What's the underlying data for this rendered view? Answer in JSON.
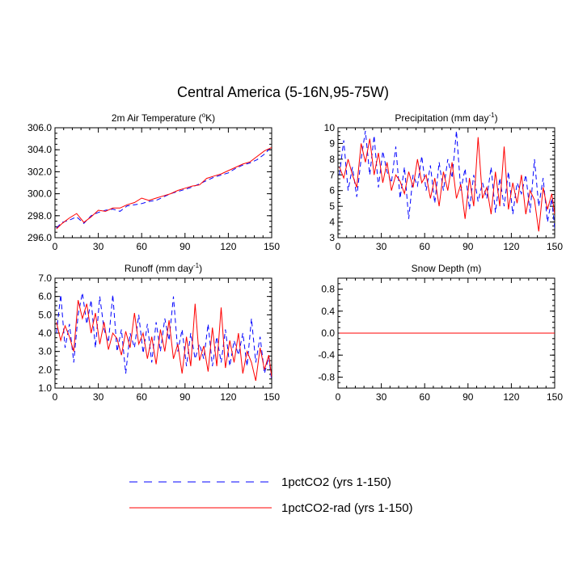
{
  "figure_title": "Central America (5-16N,95-75W)",
  "legend": {
    "placement": "bottom",
    "entries": [
      {
        "label": "1pctCO2 (yrs 1-150)",
        "color": "#0000ff",
        "dash": "dashed"
      },
      {
        "label": "1pctCO2-rad (yrs 1-150)",
        "color": "#ff0000",
        "dash": "solid"
      }
    ]
  },
  "chart_data": [
    {
      "type": "line",
      "title": "2m Air Temperature (°K)",
      "title_parts": {
        "main": "2m Air Temperature (",
        "sup": "o",
        "tail": "K)"
      },
      "xlim": [
        0,
        150
      ],
      "ylim": [
        296.0,
        306.0
      ],
      "xticks": [
        0,
        30,
        60,
        90,
        120,
        150
      ],
      "xtick_labels": [
        "0",
        "30",
        "60",
        "90",
        "120",
        "150"
      ],
      "yticks": [
        296.0,
        298.0,
        300.0,
        302.0,
        304.0,
        306.0
      ],
      "ytick_labels": [
        "296.0",
        "298.0",
        "300.0",
        "302.0",
        "304.0",
        "306.0"
      ],
      "series": [
        {
          "name": "1pctCO2 (yrs 1-150)",
          "color": "#0000ff",
          "dash": "dashed",
          "x": [
            1,
            5,
            10,
            15,
            20,
            25,
            30,
            35,
            40,
            45,
            50,
            55,
            60,
            65,
            70,
            75,
            80,
            85,
            90,
            95,
            100,
            105,
            110,
            115,
            120,
            125,
            130,
            135,
            140,
            145,
            150
          ],
          "y": [
            296.9,
            297.4,
            297.6,
            297.9,
            297.3,
            298.0,
            298.3,
            298.5,
            298.6,
            298.4,
            298.9,
            299.0,
            299.1,
            299.3,
            299.4,
            299.7,
            300.0,
            300.2,
            300.4,
            300.6,
            300.9,
            301.2,
            301.5,
            301.7,
            301.9,
            302.3,
            302.6,
            302.8,
            303.1,
            303.6,
            304.3
          ]
        },
        {
          "name": "1pctCO2-rad (yrs 1-150)",
          "color": "#ff0000",
          "dash": "solid",
          "x": [
            1,
            5,
            10,
            15,
            20,
            25,
            30,
            35,
            40,
            45,
            50,
            55,
            60,
            65,
            70,
            75,
            80,
            85,
            90,
            95,
            100,
            105,
            110,
            115,
            120,
            125,
            130,
            135,
            140,
            145,
            150
          ],
          "y": [
            296.8,
            297.3,
            297.8,
            298.2,
            297.4,
            297.9,
            298.5,
            298.4,
            298.7,
            298.7,
            299.0,
            299.2,
            299.6,
            299.4,
            299.6,
            299.8,
            300.0,
            300.3,
            300.5,
            300.7,
            300.8,
            301.4,
            301.6,
            301.8,
            302.1,
            302.4,
            302.7,
            302.9,
            303.4,
            303.9,
            304.2
          ]
        }
      ]
    },
    {
      "type": "line",
      "title": "Precipitation (mm day-1)",
      "title_parts": {
        "main": "Precipitation (mm day",
        "sup": "-1",
        "tail": ")"
      },
      "xlim": [
        0,
        150
      ],
      "ylim": [
        3,
        10
      ],
      "xticks": [
        0,
        30,
        60,
        90,
        120,
        150
      ],
      "xtick_labels": [
        "0",
        "30",
        "60",
        "90",
        "120",
        "150"
      ],
      "yticks": [
        3,
        4,
        5,
        6,
        7,
        8,
        9,
        10
      ],
      "ytick_labels": [
        "3",
        "4",
        "5",
        "6",
        "7",
        "8",
        "9",
        "10"
      ],
      "series": [
        {
          "name": "1pctCO2 (yrs 1-150)",
          "color": "#0000ff",
          "dash": "dashed",
          "x": [
            1,
            4,
            7,
            10,
            13,
            16,
            19,
            22,
            25,
            28,
            31,
            34,
            37,
            40,
            43,
            46,
            49,
            52,
            55,
            58,
            61,
            64,
            67,
            70,
            73,
            76,
            79,
            82,
            85,
            88,
            91,
            94,
            97,
            100,
            103,
            106,
            109,
            112,
            115,
            118,
            121,
            124,
            127,
            130,
            133,
            136,
            139,
            142,
            145,
            148,
            150
          ],
          "y": [
            7.0,
            9.2,
            6.0,
            7.5,
            5.6,
            8.0,
            9.8,
            7.0,
            9.5,
            6.2,
            8.5,
            7.2,
            6.5,
            8.8,
            5.5,
            7.5,
            4.2,
            7.0,
            6.3,
            8.2,
            6.0,
            7.6,
            5.2,
            7.8,
            6.0,
            8.0,
            6.8,
            9.8,
            6.0,
            7.4,
            4.8,
            7.0,
            5.3,
            6.5,
            5.5,
            7.5,
            4.6,
            6.8,
            5.0,
            7.2,
            4.5,
            6.5,
            5.8,
            7.0,
            4.6,
            8.0,
            5.0,
            6.8,
            4.0,
            5.5,
            3.6
          ]
        },
        {
          "name": "1pctCO2-rad (yrs 1-150)",
          "color": "#ff0000",
          "dash": "solid",
          "x": [
            1,
            4,
            7,
            10,
            13,
            16,
            19,
            22,
            25,
            28,
            31,
            34,
            37,
            40,
            43,
            46,
            49,
            52,
            55,
            58,
            61,
            64,
            67,
            70,
            73,
            76,
            79,
            82,
            85,
            88,
            91,
            94,
            97,
            100,
            103,
            106,
            109,
            112,
            115,
            118,
            121,
            124,
            127,
            130,
            133,
            136,
            139,
            142,
            145,
            148,
            150
          ],
          "y": [
            7.5,
            6.8,
            8.0,
            7.0,
            6.2,
            9.0,
            7.8,
            9.3,
            7.0,
            8.4,
            6.5,
            7.8,
            6.0,
            7.0,
            6.6,
            5.8,
            7.2,
            6.2,
            8.0,
            6.5,
            7.0,
            5.5,
            6.8,
            5.0,
            7.2,
            6.0,
            7.8,
            5.5,
            6.4,
            4.2,
            6.8,
            5.0,
            9.4,
            5.5,
            6.2,
            4.5,
            7.2,
            5.0,
            8.8,
            4.8,
            6.5,
            5.2,
            7.0,
            4.5,
            6.0,
            5.4,
            3.4,
            6.2,
            4.8,
            5.8,
            4.5
          ]
        }
      ]
    },
    {
      "type": "line",
      "title": "Runoff (mm day-1)",
      "title_parts": {
        "main": "Runoff (mm day",
        "sup": "-1",
        "tail": ")"
      },
      "xlim": [
        0,
        150
      ],
      "ylim": [
        1.0,
        7.0
      ],
      "xticks": [
        0,
        30,
        60,
        90,
        120,
        150
      ],
      "xtick_labels": [
        "0",
        "30",
        "60",
        "90",
        "120",
        "150"
      ],
      "yticks": [
        1.0,
        2.0,
        3.0,
        4.0,
        5.0,
        6.0,
        7.0
      ],
      "ytick_labels": [
        "1.0",
        "2.0",
        "3.0",
        "4.0",
        "5.0",
        "6.0",
        "7.0"
      ],
      "series": [
        {
          "name": "1pctCO2 (yrs 1-150)",
          "color": "#0000ff",
          "dash": "dashed",
          "x": [
            1,
            4,
            7,
            10,
            13,
            16,
            19,
            22,
            25,
            28,
            31,
            34,
            37,
            40,
            43,
            46,
            49,
            52,
            55,
            58,
            61,
            64,
            67,
            70,
            73,
            76,
            79,
            82,
            85,
            88,
            91,
            94,
            97,
            100,
            103,
            106,
            109,
            112,
            115,
            118,
            121,
            124,
            127,
            130,
            133,
            136,
            139,
            142,
            145,
            148,
            150
          ],
          "y": [
            4.0,
            6.1,
            3.2,
            4.5,
            2.4,
            5.0,
            6.2,
            4.5,
            5.8,
            3.2,
            6.0,
            4.2,
            3.5,
            6.1,
            3.0,
            4.2,
            1.8,
            4.0,
            3.2,
            5.0,
            2.9,
            4.5,
            2.4,
            4.6,
            3.0,
            4.8,
            3.6,
            6.0,
            3.0,
            4.2,
            2.2,
            4.0,
            2.6,
            3.4,
            2.6,
            4.5,
            2.2,
            3.8,
            2.4,
            4.2,
            2.2,
            3.6,
            2.8,
            4.0,
            2.2,
            4.8,
            2.4,
            3.8,
            1.8,
            2.7,
            1.4
          ]
        },
        {
          "name": "1pctCO2-rad (yrs 1-150)",
          "color": "#ff0000",
          "dash": "solid",
          "x": [
            1,
            4,
            7,
            10,
            13,
            16,
            19,
            22,
            25,
            28,
            31,
            34,
            37,
            40,
            43,
            46,
            49,
            52,
            55,
            58,
            61,
            64,
            67,
            70,
            73,
            76,
            79,
            82,
            85,
            88,
            91,
            94,
            97,
            100,
            103,
            106,
            109,
            112,
            115,
            118,
            121,
            124,
            127,
            130,
            133,
            136,
            139,
            142,
            145,
            148,
            150
          ],
          "y": [
            4.6,
            3.6,
            4.4,
            3.8,
            3.0,
            5.8,
            4.8,
            5.6,
            4.0,
            5.1,
            3.4,
            4.6,
            3.1,
            4.0,
            3.7,
            2.8,
            4.1,
            3.2,
            5.1,
            3.4,
            4.0,
            2.6,
            3.8,
            2.3,
            4.2,
            3.0,
            4.7,
            2.6,
            3.4,
            1.8,
            3.8,
            2.2,
            5.6,
            2.5,
            3.3,
            1.9,
            4.3,
            2.2,
            5.4,
            2.1,
            3.6,
            2.4,
            4.0,
            1.8,
            3.0,
            2.4,
            1.4,
            3.2,
            2.0,
            2.8,
            1.6
          ]
        }
      ]
    },
    {
      "type": "line",
      "title": "Snow Depth (m)",
      "title_parts": {
        "main": "Snow Depth (m)",
        "sup": "",
        "tail": ""
      },
      "xlim": [
        0,
        150
      ],
      "ylim": [
        -1.0,
        1.0
      ],
      "xticks": [
        0,
        30,
        60,
        90,
        120,
        150
      ],
      "xtick_labels": [
        "0",
        "30",
        "60",
        "90",
        "120",
        "150"
      ],
      "yticks": [
        -0.8,
        -0.4,
        0.0,
        0.4,
        0.8
      ],
      "ytick_labels": [
        "-0.8",
        "-0.4",
        "0.0",
        "0.4",
        "0.8"
      ],
      "series": [
        {
          "name": "1pctCO2 (yrs 1-150)",
          "color": "#0000ff",
          "dash": "dashed",
          "x": [
            1,
            150
          ],
          "y": [
            0.0,
            0.0
          ]
        },
        {
          "name": "1pctCO2-rad (yrs 1-150)",
          "color": "#ff0000",
          "dash": "solid",
          "x": [
            1,
            150
          ],
          "y": [
            0.0,
            0.0
          ]
        }
      ]
    }
  ]
}
